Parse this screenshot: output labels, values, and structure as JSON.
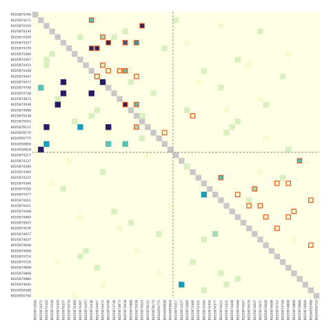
{
  "chart_data": {
    "type": "heatmap",
    "title": "",
    "xlabel": "",
    "ylabel": "",
    "labels": [
      "8025874266",
      "8025874271",
      "8025874316",
      "8025874330",
      "8025874340",
      "8025874357",
      "8025874376",
      "8025874380",
      "8025874397",
      "8025874415",
      "8025874438",
      "8025874447",
      "8025874473",
      "8025874708",
      "8025874738",
      "8025874873",
      "8025874938",
      "8025874988",
      "8025875038",
      "8025875043",
      "8025878121",
      "8025878170",
      "8024050775",
      "8024050808",
      "8024050818",
      "8025874217",
      "8025874237",
      "8025874280",
      "8025874300",
      "8025874321",
      "8025874346",
      "8025874356",
      "8025874377",
      "8025874411",
      "8025874421",
      "8025874448",
      "8025874460",
      "8025874507",
      "8025874576",
      "8025874627",
      "8025874637",
      "8025874648",
      "8025874698",
      "8025874714",
      "8025874728",
      "8025874808",
      "8025874868",
      "8025874880",
      "8025874940",
      "8024050588",
      "8024050750"
    ],
    "groups": [
      {
        "start": 0,
        "end": 24
      },
      {
        "start": 25,
        "end": 50
      }
    ],
    "colors": {
      "background": "#ffffe5",
      "diagonal": "#c8c8c8",
      "scale": [
        "#f7fcd0",
        "#d9f0c0",
        "#a8dcb8",
        "#5ac2b2",
        "#1d9cb8",
        "#1f5ea8",
        "#251c62"
      ],
      "highlight_border": "#e8541a",
      "divider": "#777777"
    },
    "cells": [
      [
        1,
        10,
        3,
        true
      ],
      [
        2,
        19,
        6,
        true
      ],
      [
        4,
        12,
        2,
        true
      ],
      [
        5,
        13,
        6,
        true
      ],
      [
        5,
        16,
        5,
        true
      ],
      [
        5,
        18,
        4,
        true
      ],
      [
        6,
        10,
        6,
        true
      ],
      [
        6,
        11,
        6,
        true
      ],
      [
        9,
        12,
        1,
        true
      ],
      [
        10,
        13,
        0,
        true
      ],
      [
        10,
        15,
        1,
        true
      ],
      [
        10,
        16,
        3,
        true
      ],
      [
        11,
        11,
        0,
        true
      ],
      [
        11,
        18,
        0,
        true
      ],
      [
        12,
        12,
        6,
        false
      ],
      [
        12,
        5,
        6,
        false
      ],
      [
        13,
        1,
        3,
        false
      ],
      [
        14,
        5,
        6,
        false
      ],
      [
        14,
        10,
        6,
        false
      ],
      [
        16,
        4,
        6,
        false
      ],
      [
        16,
        16,
        6,
        true
      ],
      [
        16,
        18,
        3,
        true
      ],
      [
        18,
        28,
        0,
        true
      ],
      [
        20,
        2,
        6,
        false
      ],
      [
        20,
        8,
        4,
        false
      ],
      [
        20,
        13,
        6,
        false
      ],
      [
        20,
        18,
        2,
        true
      ],
      [
        21,
        23,
        0,
        true
      ],
      [
        23,
        13,
        3,
        false
      ],
      [
        23,
        16,
        3,
        false
      ],
      [
        24,
        1,
        6,
        false
      ],
      [
        23,
        2,
        4,
        false
      ],
      [
        26,
        47,
        3,
        true
      ],
      [
        29,
        33,
        3,
        true
      ],
      [
        30,
        43,
        0,
        true
      ],
      [
        30,
        45,
        0,
        true
      ],
      [
        31,
        39,
        2,
        true
      ],
      [
        32,
        30,
        4,
        false
      ],
      [
        32,
        36,
        0,
        true
      ],
      [
        33,
        49,
        0,
        true
      ],
      [
        34,
        38,
        0,
        true
      ],
      [
        34,
        40,
        0,
        true
      ],
      [
        35,
        46,
        0,
        true
      ],
      [
        36,
        41,
        0,
        true
      ],
      [
        36,
        45,
        0,
        true
      ],
      [
        38,
        43,
        0,
        true
      ],
      [
        41,
        49,
        0,
        true
      ],
      [
        39,
        32,
        2,
        false
      ],
      [
        48,
        26,
        4,
        false
      ],
      [
        1,
        25,
        1,
        false
      ],
      [
        3,
        16,
        1,
        false
      ],
      [
        4,
        8,
        1,
        false
      ],
      [
        4,
        14,
        1,
        false
      ],
      [
        7,
        3,
        1,
        false
      ],
      [
        8,
        2,
        1,
        false
      ],
      [
        8,
        36,
        1,
        false
      ],
      [
        9,
        2,
        1,
        false
      ],
      [
        10,
        30,
        1,
        false
      ],
      [
        12,
        17,
        1,
        false
      ],
      [
        13,
        33,
        1,
        false
      ],
      [
        15,
        4,
        1,
        false
      ],
      [
        17,
        11,
        1,
        false
      ],
      [
        18,
        10,
        1,
        false
      ],
      [
        18,
        19,
        1,
        false
      ],
      [
        19,
        36,
        1,
        false
      ],
      [
        20,
        35,
        1,
        false
      ],
      [
        21,
        34,
        1,
        false
      ],
      [
        22,
        19,
        1,
        false
      ],
      [
        27,
        27,
        1,
        false
      ],
      [
        29,
        44,
        1,
        false
      ],
      [
        31,
        5,
        1,
        false
      ],
      [
        33,
        38,
        1,
        false
      ],
      [
        35,
        14,
        1,
        false
      ],
      [
        37,
        17,
        1,
        false
      ],
      [
        40,
        30,
        1,
        false
      ],
      [
        42,
        9,
        1,
        false
      ],
      [
        44,
        28,
        1,
        false
      ],
      [
        45,
        11,
        1,
        false
      ],
      [
        46,
        33,
        1,
        false
      ],
      [
        47,
        36,
        1,
        false
      ],
      [
        48,
        34,
        1,
        false
      ],
      [
        49,
        30,
        1,
        false
      ],
      [
        3,
        40,
        1,
        false
      ],
      [
        6,
        23,
        1,
        false
      ],
      [
        11,
        44,
        1,
        false
      ],
      [
        14,
        21,
        1,
        false
      ],
      [
        16,
        41,
        1,
        false
      ],
      [
        17,
        27,
        1,
        false
      ],
      [
        19,
        7,
        1,
        false
      ],
      [
        24,
        45,
        1,
        false
      ],
      [
        28,
        12,
        1,
        false
      ],
      [
        39,
        22,
        1,
        false
      ],
      [
        43,
        8,
        1,
        false
      ],
      [
        2,
        33,
        0,
        false
      ],
      [
        5,
        27,
        0,
        false
      ],
      [
        7,
        45,
        0,
        false
      ],
      [
        9,
        38,
        0,
        false
      ],
      [
        12,
        29,
        0,
        false
      ],
      [
        15,
        40,
        0,
        false
      ],
      [
        17,
        34,
        0,
        false
      ],
      [
        21,
        13,
        0,
        false
      ],
      [
        22,
        41,
        0,
        false
      ],
      [
        25,
        20,
        0,
        false
      ],
      [
        26,
        6,
        0,
        false
      ],
      [
        28,
        40,
        0,
        false
      ],
      [
        30,
        3,
        0,
        false
      ],
      [
        34,
        24,
        0,
        false
      ],
      [
        36,
        8,
        0,
        false
      ],
      [
        38,
        15,
        0,
        false
      ],
      [
        40,
        46,
        0,
        false
      ],
      [
        42,
        18,
        0,
        false
      ],
      [
        44,
        4,
        0,
        false
      ],
      [
        46,
        22,
        0,
        false
      ],
      [
        48,
        12,
        0,
        false
      ],
      [
        50,
        7,
        0,
        false
      ]
    ]
  }
}
